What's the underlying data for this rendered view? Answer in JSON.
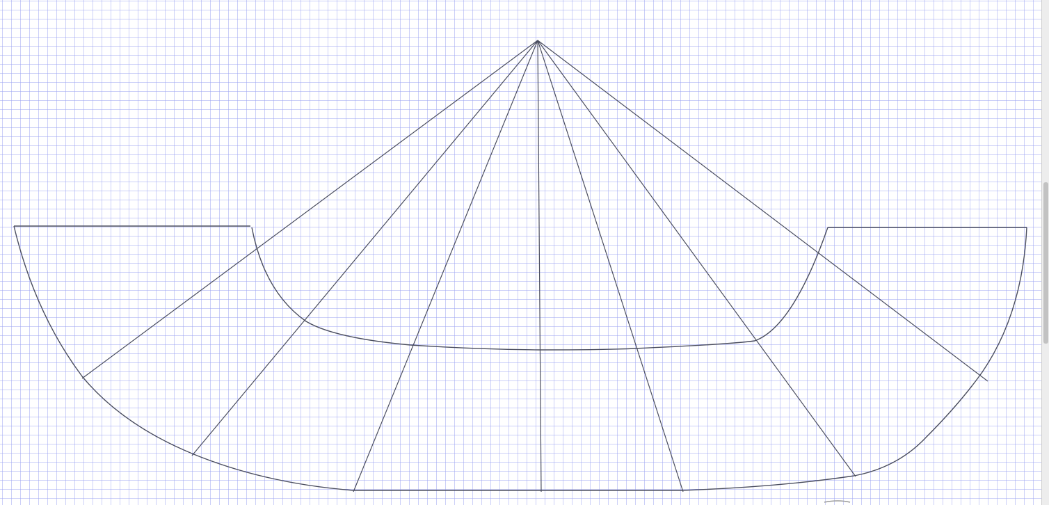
{
  "diagram": {
    "type": "sector-pattern-drafting",
    "colors": {
      "background": "#ffffff",
      "grid": "#9aa2f2",
      "lines": "#4a4d5f",
      "scrollbar": "#ededed"
    }
  }
}
